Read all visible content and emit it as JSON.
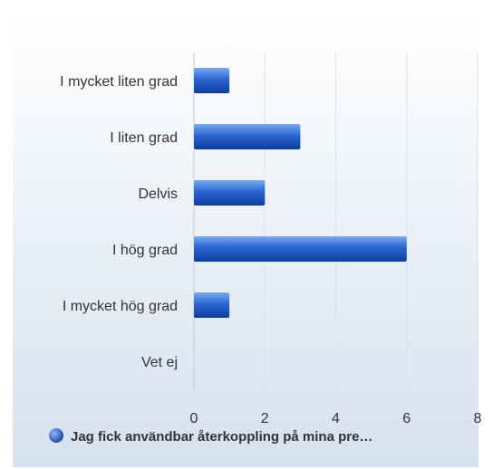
{
  "chart_data": {
    "type": "bar",
    "orientation": "horizontal",
    "categories": [
      "I mycket liten grad",
      "I liten grad",
      "Delvis",
      "I hög grad",
      "I mycket hög grad",
      "Vet ej"
    ],
    "series": [
      {
        "name": "Jag fick användbar återkoppling på mina pre…",
        "values": [
          1,
          3,
          2,
          6,
          1,
          0
        ]
      }
    ],
    "xlim": [
      0,
      8
    ],
    "xticks": [
      "0",
      "2",
      "4",
      "6",
      "8"
    ],
    "grid": true,
    "legend": "bottom",
    "colors": {
      "bar_top": "#6fa3ee",
      "bar_mid": "#2a66d2",
      "bar_bottom": "#0f3b9c",
      "legend_marker": "#2f6bd6"
    }
  }
}
